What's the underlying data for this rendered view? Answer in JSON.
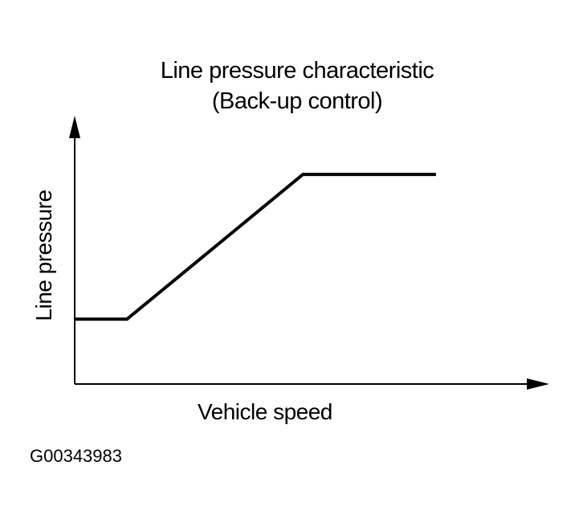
{
  "chart_data": {
    "type": "line",
    "title": "Line pressure characteristic",
    "subtitle": "(Back-up control)",
    "xlabel": "Vehicle speed",
    "ylabel": "Line pressure",
    "series": [
      {
        "x": [
          0,
          0.11,
          0.48,
          0.76
        ],
        "y": [
          0.3,
          0.3,
          0.97,
          0.97
        ]
      }
    ],
    "xlim": [
      0,
      1
    ],
    "ylim": [
      0,
      1.2
    ],
    "grid": false,
    "axis_arrows": true
  },
  "figure_id": "G00343983"
}
